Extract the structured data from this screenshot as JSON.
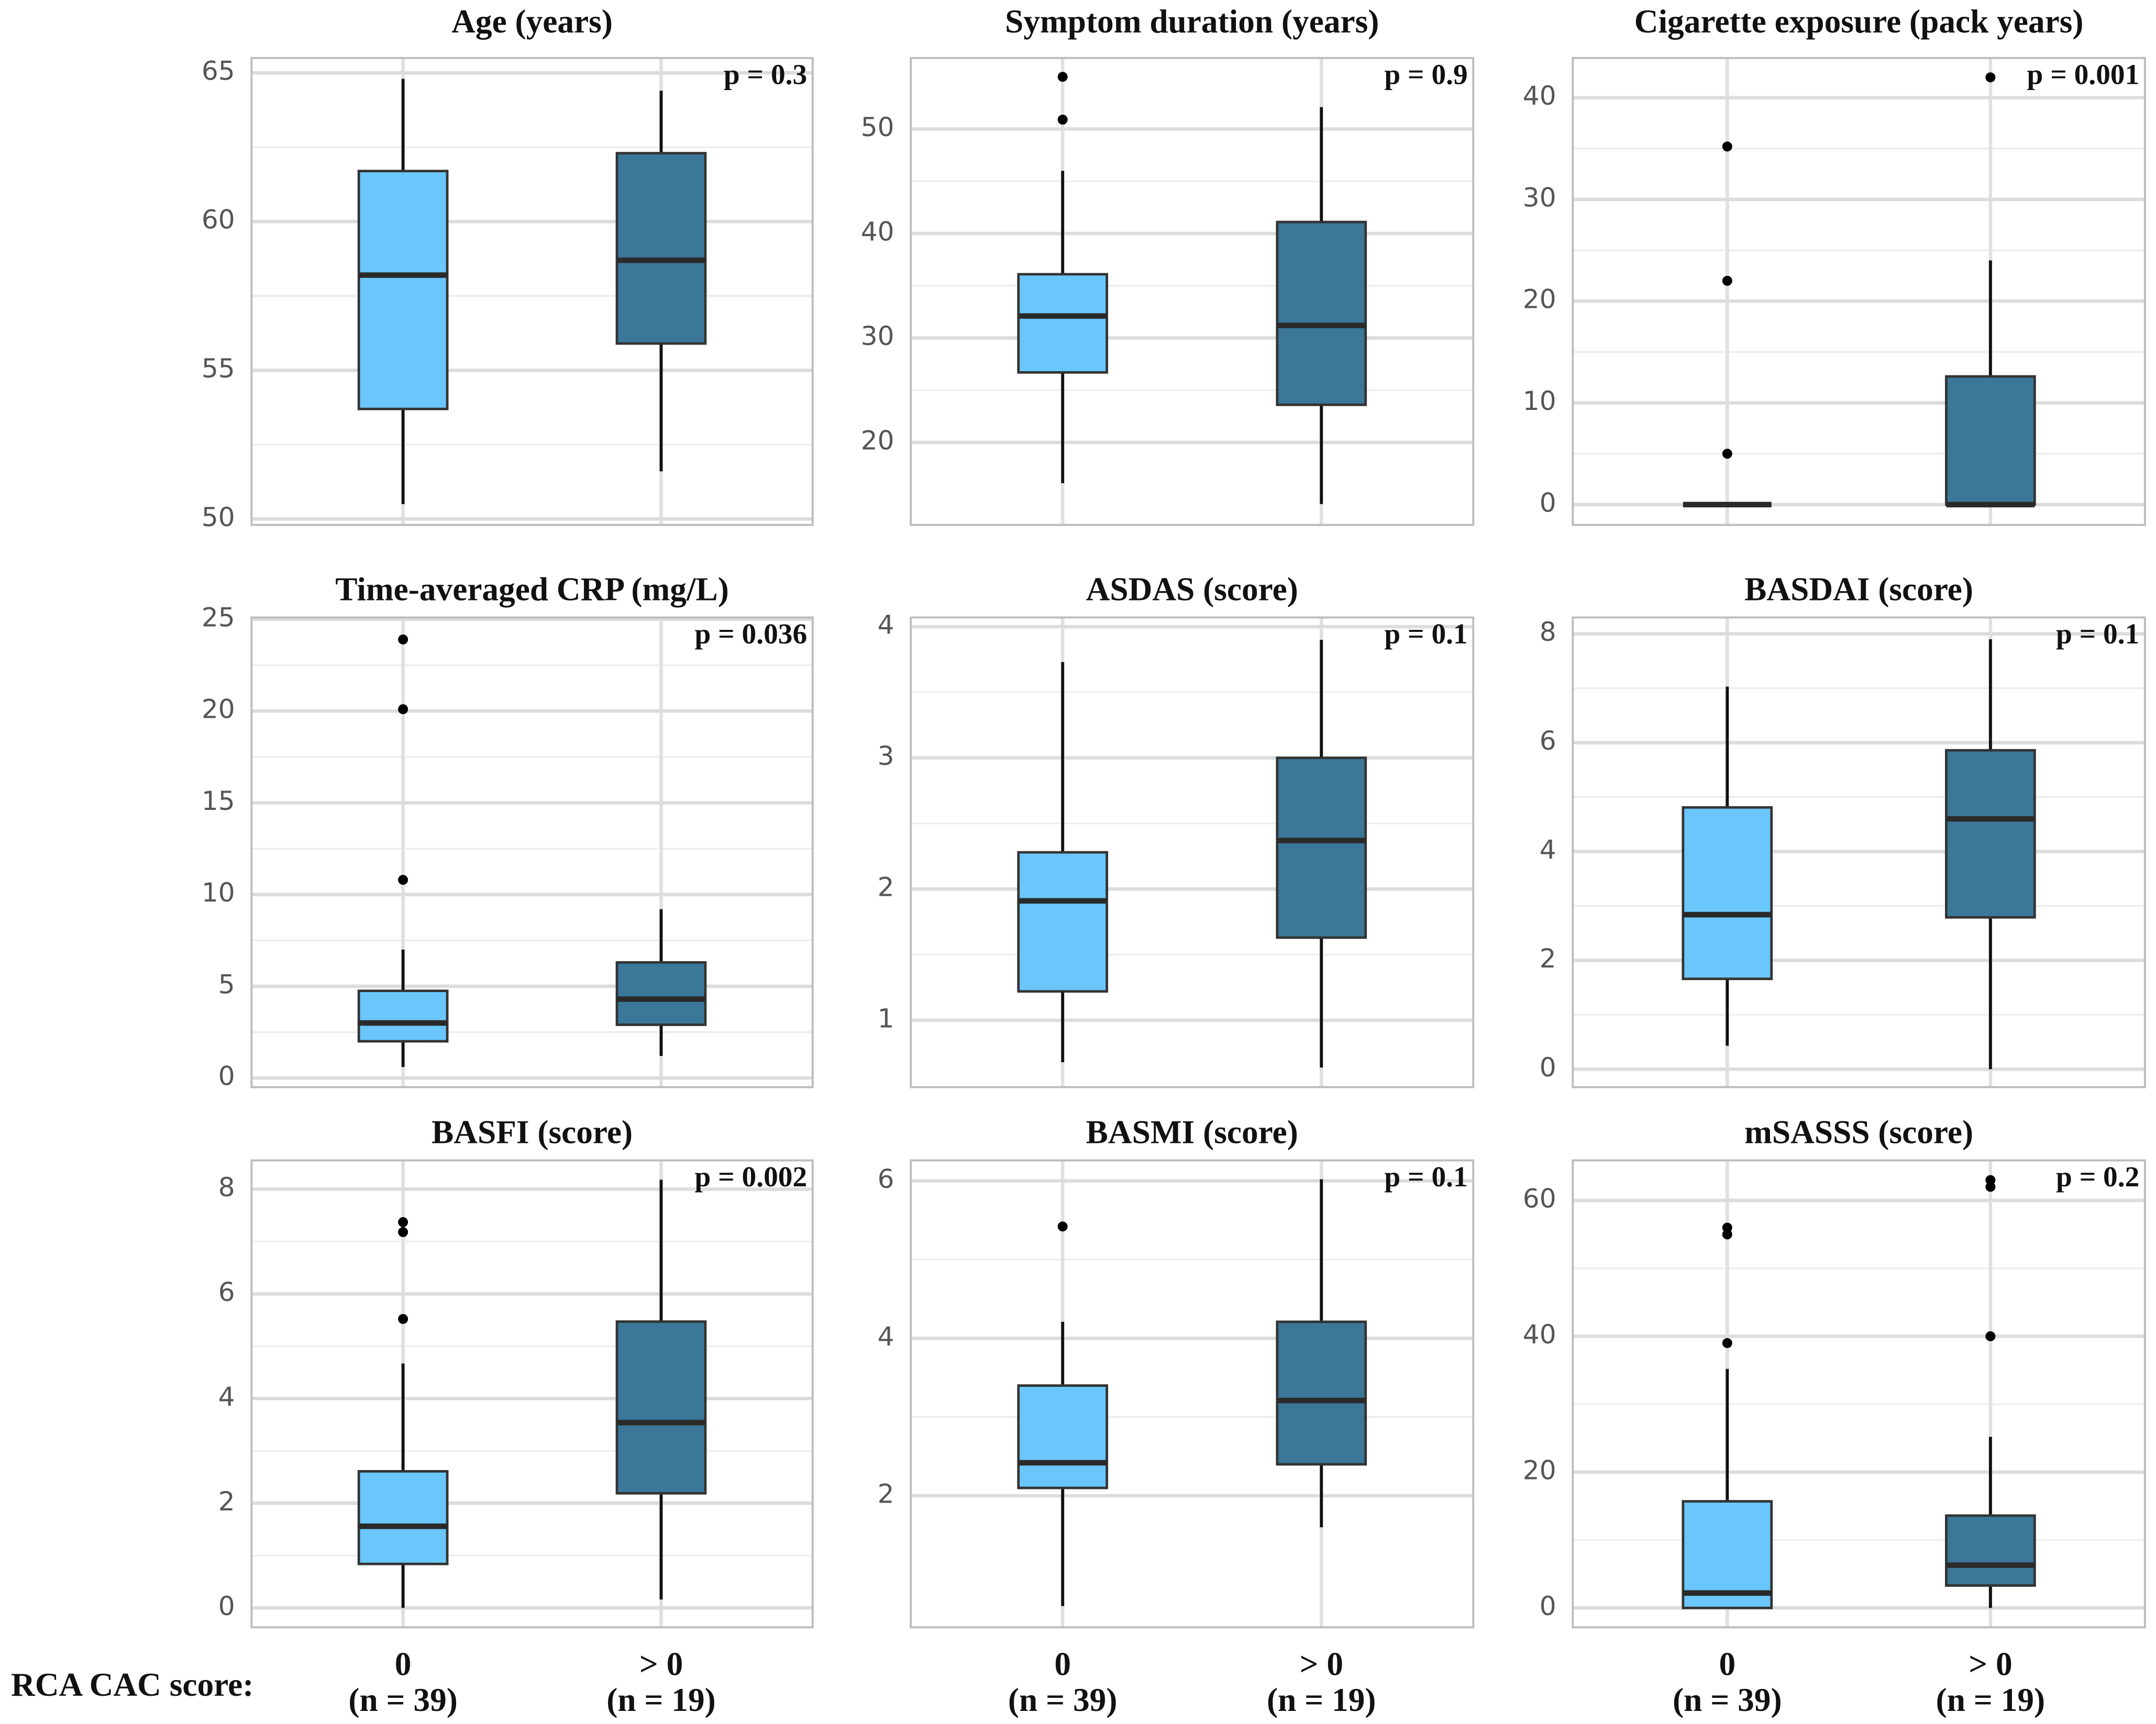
{
  "chart_data": [
    {
      "type": "box",
      "title": "Age (years)",
      "annotation": "p = 0.3",
      "ylim": [
        49.8,
        65.5
      ],
      "yticks": [
        50,
        55,
        60,
        65
      ],
      "groups": [
        {
          "color": "#6ac6fb",
          "whislo": 50.5,
          "q1": 53.7,
          "median": 58.2,
          "q3": 61.7,
          "whishi": 64.8,
          "outliers": []
        },
        {
          "color": "#3b7799",
          "whislo": 51.6,
          "q1": 55.9,
          "median": 58.7,
          "q3": 62.3,
          "whishi": 64.4,
          "outliers": []
        }
      ]
    },
    {
      "type": "box",
      "title": "Symptom duration (years)",
      "annotation": "p = 0.9",
      "ylim": [
        12.1,
        56.8
      ],
      "yticks": [
        20,
        30,
        40,
        50
      ],
      "groups": [
        {
          "color": "#6ac6fb",
          "whislo": 16.1,
          "q1": 26.7,
          "median": 32.1,
          "q3": 36.1,
          "whishi": 46,
          "outliers": [
            55,
            50.9
          ]
        },
        {
          "color": "#3b7799",
          "whislo": 14.1,
          "q1": 23.6,
          "median": 31.2,
          "q3": 41.1,
          "whishi": 52.1,
          "outliers": []
        }
      ]
    },
    {
      "type": "box",
      "title": "Cigarette exposure (pack years)",
      "annotation": "p = 0.001",
      "ylim": [
        -2,
        43.9
      ],
      "yticks": [
        0,
        10,
        20,
        30,
        40
      ],
      "groups": [
        {
          "color": "#6ac6fb",
          "whislo": 0,
          "q1": 0,
          "median": 0,
          "q3": 0,
          "whishi": 0,
          "outliers": [
            35.2,
            22,
            5
          ]
        },
        {
          "color": "#3b7799",
          "whislo": 0,
          "q1": 0,
          "median": 0,
          "q3": 12.6,
          "whishi": 24,
          "outliers": [
            42
          ]
        }
      ]
    },
    {
      "type": "box",
      "title": "Time-averaged CRP (mg/L)",
      "annotation": "p = 0.036",
      "ylim": [
        -0.5,
        25.1
      ],
      "yticks": [
        0,
        5,
        10,
        15,
        20,
        25
      ],
      "groups": [
        {
          "color": "#6ac6fb",
          "whislo": 0.6,
          "q1": 2.0,
          "median": 3.0,
          "q3": 4.75,
          "whishi": 7.0,
          "outliers": [
            23.9,
            20.1,
            10.8
          ]
        },
        {
          "color": "#3b7799",
          "whislo": 1.2,
          "q1": 2.9,
          "median": 4.3,
          "q3": 6.3,
          "whishi": 9.2,
          "outliers": []
        }
      ]
    },
    {
      "type": "box",
      "title": "ASDAS (score)",
      "annotation": "p = 0.1",
      "ylim": [
        0.49,
        4.07
      ],
      "yticks": [
        1,
        2,
        3,
        4
      ],
      "groups": [
        {
          "color": "#6ac6fb",
          "whislo": 0.68,
          "q1": 1.22,
          "median": 1.91,
          "q3": 2.28,
          "whishi": 3.73,
          "outliers": []
        },
        {
          "color": "#3b7799",
          "whislo": 0.64,
          "q1": 1.63,
          "median": 2.37,
          "q3": 3.0,
          "whishi": 3.9,
          "outliers": []
        }
      ]
    },
    {
      "type": "box",
      "title": "BASDAI (score)",
      "annotation": "p = 0.1",
      "ylim": [
        -0.33,
        8.3
      ],
      "yticks": [
        0,
        2,
        4,
        6,
        8
      ],
      "groups": [
        {
          "color": "#6ac6fb",
          "whislo": 0.43,
          "q1": 1.66,
          "median": 2.84,
          "q3": 4.81,
          "whishi": 7.03,
          "outliers": []
        },
        {
          "color": "#3b7799",
          "whislo": 0,
          "q1": 2.79,
          "median": 4.6,
          "q3": 5.86,
          "whishi": 7.9,
          "outliers": []
        }
      ]
    },
    {
      "type": "box",
      "title": "BASFI (score)",
      "annotation": "p = 0.002",
      "ylim": [
        -0.37,
        8.55
      ],
      "yticks": [
        0,
        2,
        4,
        6,
        8
      ],
      "groups": [
        {
          "color": "#6ac6fb",
          "whislo": 0,
          "q1": 0.84,
          "median": 1.56,
          "q3": 2.61,
          "whishi": 4.67,
          "outliers": [
            7.37,
            7.18,
            5.52
          ]
        },
        {
          "color": "#3b7799",
          "whislo": 0.16,
          "q1": 2.19,
          "median": 3.54,
          "q3": 5.47,
          "whishi": 8.18,
          "outliers": []
        }
      ]
    },
    {
      "type": "box",
      "title": "BASMI (score)",
      "annotation": "p = 0.1",
      "ylim": [
        0.33,
        6.26
      ],
      "yticks": [
        2,
        4,
        6
      ],
      "groups": [
        {
          "color": "#6ac6fb",
          "whislo": 0.6,
          "q1": 2.1,
          "median": 2.42,
          "q3": 3.4,
          "whishi": 4.21,
          "outliers": [
            5.42
          ]
        },
        {
          "color": "#3b7799",
          "whislo": 1.6,
          "q1": 2.4,
          "median": 3.21,
          "q3": 4.21,
          "whishi": 6.02,
          "outliers": []
        }
      ]
    },
    {
      "type": "box",
      "title": "mSASSS (score)",
      "annotation": "p = 0.2",
      "ylim": [
        -2.85,
        65.9
      ],
      "yticks": [
        0,
        20,
        40,
        60
      ],
      "groups": [
        {
          "color": "#6ac6fb",
          "whislo": 0,
          "q1": 0,
          "median": 2.2,
          "q3": 15.7,
          "whishi": 35.2,
          "outliers": [
            56,
            55,
            39
          ]
        },
        {
          "color": "#3b7799",
          "whislo": 0,
          "q1": 3.3,
          "median": 6.3,
          "q3": 13.6,
          "whishi": 25.2,
          "outliers": [
            63,
            62,
            40
          ]
        }
      ]
    }
  ],
  "x_axis": {
    "label": "RCA CAC score:",
    "categories": [
      "0",
      "> 0"
    ],
    "counts": [
      "(n = 39)",
      "(n = 19)"
    ]
  }
}
